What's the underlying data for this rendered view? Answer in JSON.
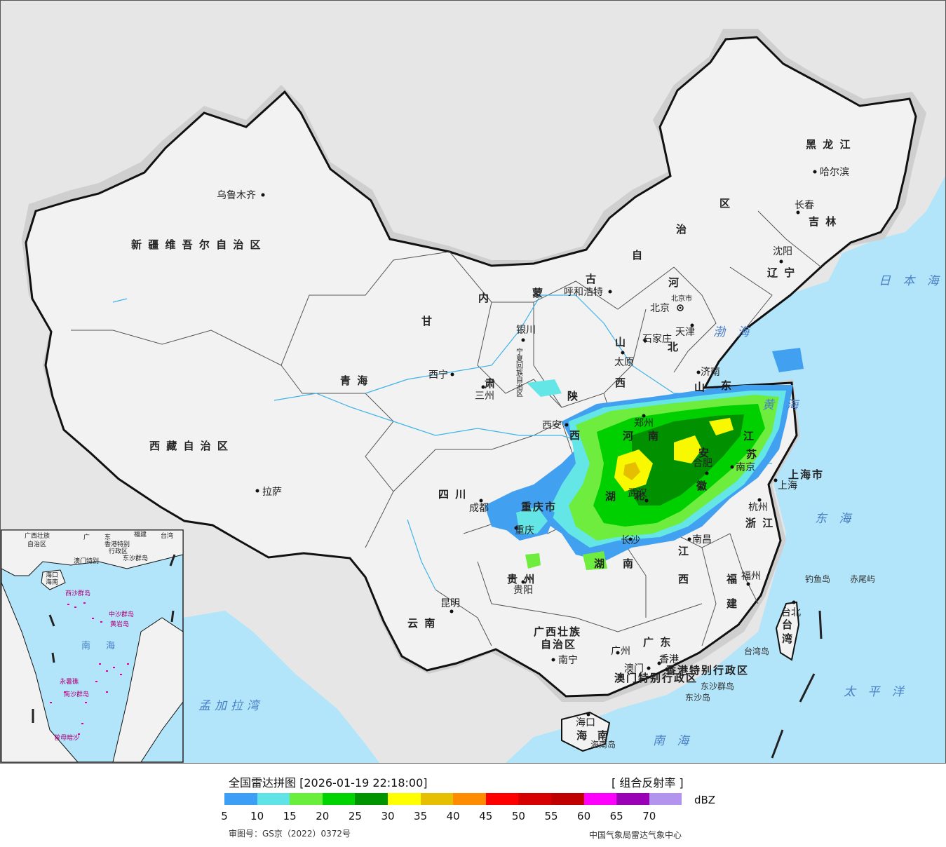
{
  "map": {
    "provinces": [
      {
        "id": "xinjiang",
        "name": "新 疆 维 吾 尔 自 治 区"
      },
      {
        "id": "xizang",
        "name": "西 藏 自 治 区"
      },
      {
        "id": "qinghai",
        "name": "青     海"
      },
      {
        "id": "gansu",
        "name": "甘"
      },
      {
        "id": "gansu2",
        "name": "肃"
      },
      {
        "id": "neimenggu1",
        "name": "内"
      },
      {
        "id": "neimenggu2",
        "name": "蒙"
      },
      {
        "id": "neimenggu3",
        "name": "古"
      },
      {
        "id": "neimenggu4",
        "name": "自"
      },
      {
        "id": "neimenggu5",
        "name": "治"
      },
      {
        "id": "neimenggu6",
        "name": "区"
      },
      {
        "id": "heilongjiang",
        "name": "黑 龙 江"
      },
      {
        "id": "jilin",
        "name": "吉 林"
      },
      {
        "id": "liaoning",
        "name": "辽 宁"
      },
      {
        "id": "hebei1",
        "name": "河"
      },
      {
        "id": "hebei2",
        "name": "北"
      },
      {
        "id": "shanxi1",
        "name": "山"
      },
      {
        "id": "shanxi2",
        "name": "西"
      },
      {
        "id": "shaanxi1",
        "name": "陕"
      },
      {
        "id": "shaanxi2",
        "name": "西"
      },
      {
        "id": "shandong1",
        "name": "山"
      },
      {
        "id": "shandong2",
        "name": "东"
      },
      {
        "id": "henan1",
        "name": "河"
      },
      {
        "id": "henan2",
        "name": "南"
      },
      {
        "id": "jiangsu1",
        "name": "江"
      },
      {
        "id": "jiangsu2",
        "name": "苏"
      },
      {
        "id": "anhui1",
        "name": "安"
      },
      {
        "id": "anhui2",
        "name": "徽"
      },
      {
        "id": "hubei1",
        "name": "湖"
      },
      {
        "id": "hubei2",
        "name": "北"
      },
      {
        "id": "sichuan",
        "name": "四     川"
      },
      {
        "id": "chongqing",
        "name": "重庆市"
      },
      {
        "id": "hunan1",
        "name": "湖"
      },
      {
        "id": "hunan2",
        "name": "南"
      },
      {
        "id": "jiangxi1",
        "name": "江"
      },
      {
        "id": "jiangxi2",
        "name": "西"
      },
      {
        "id": "zhejiang",
        "name": "浙 江"
      },
      {
        "id": "fujian1",
        "name": "福"
      },
      {
        "id": "fujian2",
        "name": "建"
      },
      {
        "id": "guizhou",
        "name": "贵   州"
      },
      {
        "id": "yunnan",
        "name": "云     南"
      },
      {
        "id": "guangxi1",
        "name": "广西壮族"
      },
      {
        "id": "guangxi2",
        "name": "自治区"
      },
      {
        "id": "guangdong",
        "name": "广   东"
      },
      {
        "id": "hainan1",
        "name": "海"
      },
      {
        "id": "hainan2",
        "name": "南"
      },
      {
        "id": "taiwan1",
        "name": "台"
      },
      {
        "id": "taiwan2",
        "name": "湾"
      },
      {
        "id": "shanghai",
        "name": "上海市"
      },
      {
        "id": "ningxia",
        "name": "宁夏回族自治区"
      },
      {
        "id": "hk",
        "name": "香港特别行政区"
      },
      {
        "id": "macau",
        "name": "澳门特别行政区"
      },
      {
        "id": "beijing",
        "name": "北京"
      },
      {
        "id": "tianjin",
        "name": "天津"
      }
    ],
    "cities": [
      {
        "id": "urumqi",
        "name": "乌鲁木齐"
      },
      {
        "id": "lhasa",
        "name": "拉萨"
      },
      {
        "id": "xining",
        "name": "西宁"
      },
      {
        "id": "lanzhou",
        "name": "三州"
      },
      {
        "id": "yinchuan",
        "name": "银川"
      },
      {
        "id": "hohhot",
        "name": "呼和浩特"
      },
      {
        "id": "harbin",
        "name": "哈尔滨"
      },
      {
        "id": "changchun",
        "name": "长春"
      },
      {
        "id": "shenyang",
        "name": "沈阳"
      },
      {
        "id": "shijiazhuang",
        "name": "石家庄"
      },
      {
        "id": "taiyuan",
        "name": "太原"
      },
      {
        "id": "jinan",
        "name": "济南"
      },
      {
        "id": "xian",
        "name": "西安"
      },
      {
        "id": "zhengzhou",
        "name": "郑州"
      },
      {
        "id": "hefei",
        "name": "合肥"
      },
      {
        "id": "nanjing",
        "name": "南京"
      },
      {
        "id": "shanghai_c",
        "name": "上海"
      },
      {
        "id": "hangzhou",
        "name": "杭州"
      },
      {
        "id": "wuhan",
        "name": "武汉"
      },
      {
        "id": "changsha",
        "name": "长沙"
      },
      {
        "id": "nanchang",
        "name": "南昌"
      },
      {
        "id": "fuzhou",
        "name": "福州"
      },
      {
        "id": "taibei",
        "name": "台北"
      },
      {
        "id": "chengdu",
        "name": "成都"
      },
      {
        "id": "chongqing_c",
        "name": "重庆"
      },
      {
        "id": "guiyang",
        "name": "贵阳"
      },
      {
        "id": "kunming",
        "name": "昆明"
      },
      {
        "id": "nanning",
        "name": "南宁"
      },
      {
        "id": "guangzhou",
        "name": "广州"
      },
      {
        "id": "aomen",
        "name": "澳门"
      },
      {
        "id": "xianggang",
        "name": "香港"
      },
      {
        "id": "haikou",
        "name": "海口"
      },
      {
        "id": "beijingcity",
        "name": "北京市"
      }
    ],
    "seas": [
      {
        "id": "japan-sea",
        "name": "日 本 海"
      },
      {
        "id": "bohai",
        "name": "渤 海"
      },
      {
        "id": "huanghai",
        "name": "黄 海"
      },
      {
        "id": "donghai",
        "name": "东 海"
      },
      {
        "id": "taipingyang",
        "name": "太 平 洋"
      },
      {
        "id": "nanhai",
        "name": "南   海"
      },
      {
        "id": "mengjiala",
        "name": "孟加拉湾"
      }
    ],
    "islands": [
      {
        "id": "diaoyu",
        "name": "钓鱼岛"
      },
      {
        "id": "chiwei",
        "name": "赤尾屿"
      },
      {
        "id": "taiwan-isl",
        "name": "台湾岛"
      },
      {
        "id": "dongsha-q",
        "name": "东沙群岛"
      },
      {
        "id": "dongsha-d",
        "name": "东沙岛"
      },
      {
        "id": "hainan-isl",
        "name": "海南岛"
      }
    ],
    "inset": {
      "labels": [
        "广西壮族",
        "自治区",
        "广",
        "东",
        "福建",
        "台湾",
        "香港特别",
        "澳门特别",
        "行政区",
        "东沙群岛",
        "海口",
        "海南",
        "西沙群岛",
        "中沙群岛",
        "黄岩岛",
        "南",
        "海",
        "永暑礁",
        "南沙群岛",
        "曾母暗沙"
      ]
    }
  },
  "radar_echo_colors": {
    "light_blue": "#41a0f0",
    "cyan": "#64e6e6",
    "light_green": "#6eed3e",
    "green": "#00d000",
    "dark_green": "#009000",
    "yellow": "#f8f800",
    "gold": "#e6be00"
  },
  "legend": {
    "title": "全国雷达拼图 [2026-01-19 22:18:00]",
    "product": "[ 组合反射率 ]",
    "unit": "dBZ",
    "colors": [
      "#3d9ef5",
      "#5fe3e6",
      "#6aee3c",
      "#00d400",
      "#009400",
      "#ffff00",
      "#e6bf00",
      "#ff8c00",
      "#ff0000",
      "#d60000",
      "#c00000",
      "#ff00ff",
      "#9a00b5",
      "#b294ee"
    ],
    "ticks": [
      "5",
      "10",
      "15",
      "20",
      "25",
      "30",
      "35",
      "40",
      "45",
      "50",
      "55",
      "60",
      "65",
      "70"
    ],
    "review_number": "审图号：GS京（2022）0372号",
    "agency": "中国气象局雷达气象中心"
  }
}
